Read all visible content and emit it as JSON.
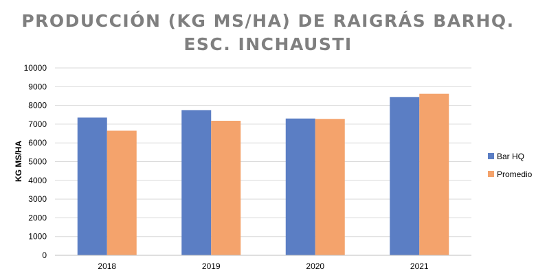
{
  "chart_data": {
    "type": "bar",
    "title_lines": [
      "PRODUCCIÓN (KG MS/HA) DE RAIGRÁS BARHQ.",
      "ESC. INCHAUSTI"
    ],
    "xlabel": "",
    "ylabel": "KG MS/HA",
    "ylim": [
      0,
      10000
    ],
    "yticks": [
      0,
      1000,
      2000,
      3000,
      4000,
      5000,
      6000,
      7000,
      8000,
      9000,
      10000
    ],
    "categories": [
      "2018",
      "2019",
      "2020",
      "2021"
    ],
    "series": [
      {
        "name": "Bar HQ",
        "values": [
          7350,
          7750,
          7300,
          8450
        ],
        "color": "#5b7ec4"
      },
      {
        "name": "Promedio",
        "values": [
          6650,
          7180,
          7280,
          8620
        ],
        "color": "#f4a36c"
      }
    ],
    "grid": true,
    "legend_position": "right"
  }
}
